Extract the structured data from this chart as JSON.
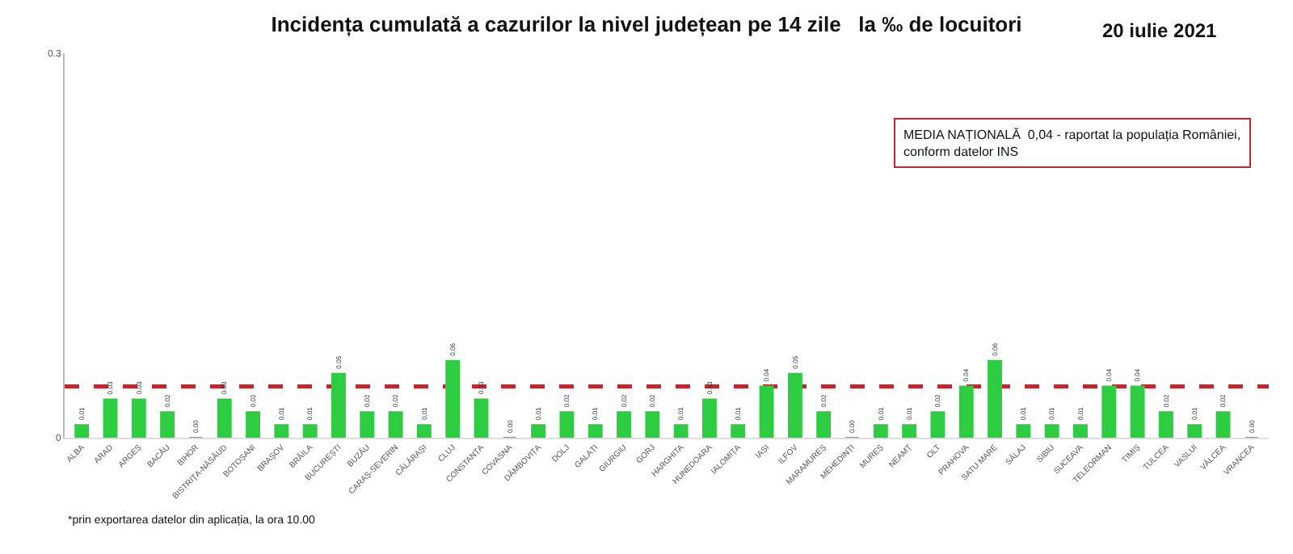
{
  "chart_data": {
    "type": "bar",
    "title": "Incidența cumulată a cazurilor la nivel județean pe 14 zile   la ‰ de locuitori",
    "subtitle": "20 iulie 2021",
    "categories": [
      "ALBA",
      "ARAD",
      "ARGEȘ",
      "BACĂU",
      "BIHOR",
      "BISTRIȚA-NĂSĂUD",
      "BOTOȘANI",
      "BRAȘOV",
      "BRĂILA",
      "BUCUREȘTI",
      "BUZĂU",
      "CARAȘ-SEVERIN",
      "CĂLĂRAȘI",
      "CLUJ",
      "CONSTANȚA",
      "COVASNA",
      "DÂMBOVIȚA",
      "DOLJ",
      "GALAȚI",
      "GIURGIU",
      "GORJ",
      "HARGHITA",
      "HUNEDOARA",
      "IALOMIȚA",
      "IAȘI",
      "ILFOV",
      "MARAMUREȘ",
      "MEHEDINȚI",
      "MUREȘ",
      "NEAMȚ",
      "OLT",
      "PRAHOVA",
      "SATU MARE",
      "SĂLAJ",
      "SIBIU",
      "SUCEAVA",
      "TELEORMAN",
      "TIMIȘ",
      "TULCEA",
      "VASLUI",
      "VÂLCEA",
      "VRANCEA"
    ],
    "values": [
      0.01,
      0.03,
      0.03,
      0.02,
      0.0,
      0.03,
      0.02,
      0.01,
      0.01,
      0.05,
      0.02,
      0.02,
      0.01,
      0.06,
      0.03,
      0.0,
      0.01,
      0.02,
      0.01,
      0.02,
      0.02,
      0.01,
      0.03,
      0.01,
      0.04,
      0.05,
      0.02,
      0.0,
      0.01,
      0.01,
      0.02,
      0.04,
      0.06,
      0.01,
      0.01,
      0.01,
      0.04,
      0.04,
      0.02,
      0.01,
      0.02,
      0.0
    ],
    "value_labels": [
      "0.01",
      "0.03",
      "0.03",
      "0.02",
      "0.00",
      "0.03",
      "0.02",
      "0.01",
      "0.01",
      "0.05",
      "0.02",
      "0.02",
      "0.01",
      "0.06",
      "0.03",
      "0.00",
      "0.01",
      "0.02",
      "0.01",
      "0.02",
      "0.02",
      "0.01",
      "0.03",
      "0.01",
      "0.04",
      "0.05",
      "0.02",
      "0.00",
      "0.01",
      "0.01",
      "0.02",
      "0.04",
      "0.06",
      "0.01",
      "0.01",
      "0.01",
      "0.04",
      "0.04",
      "0.02",
      "0.01",
      "0.02",
      "0.00"
    ],
    "color": "#2ecc40",
    "ylim": [
      0,
      0.3
    ],
    "yticks": [
      0,
      0.3
    ],
    "grid": false,
    "legend": false,
    "ref_lines": [
      {
        "axis": "y",
        "value": 0.04,
        "color": "#c0282d",
        "line_style": "dashed"
      }
    ],
    "annotations": [
      "MEDIA NAȚIONALĂ  0,04 - raportat la populația României,\nconform datelor INS",
      "*prin exportarea datelor din aplicația, la ora 10.00"
    ]
  }
}
